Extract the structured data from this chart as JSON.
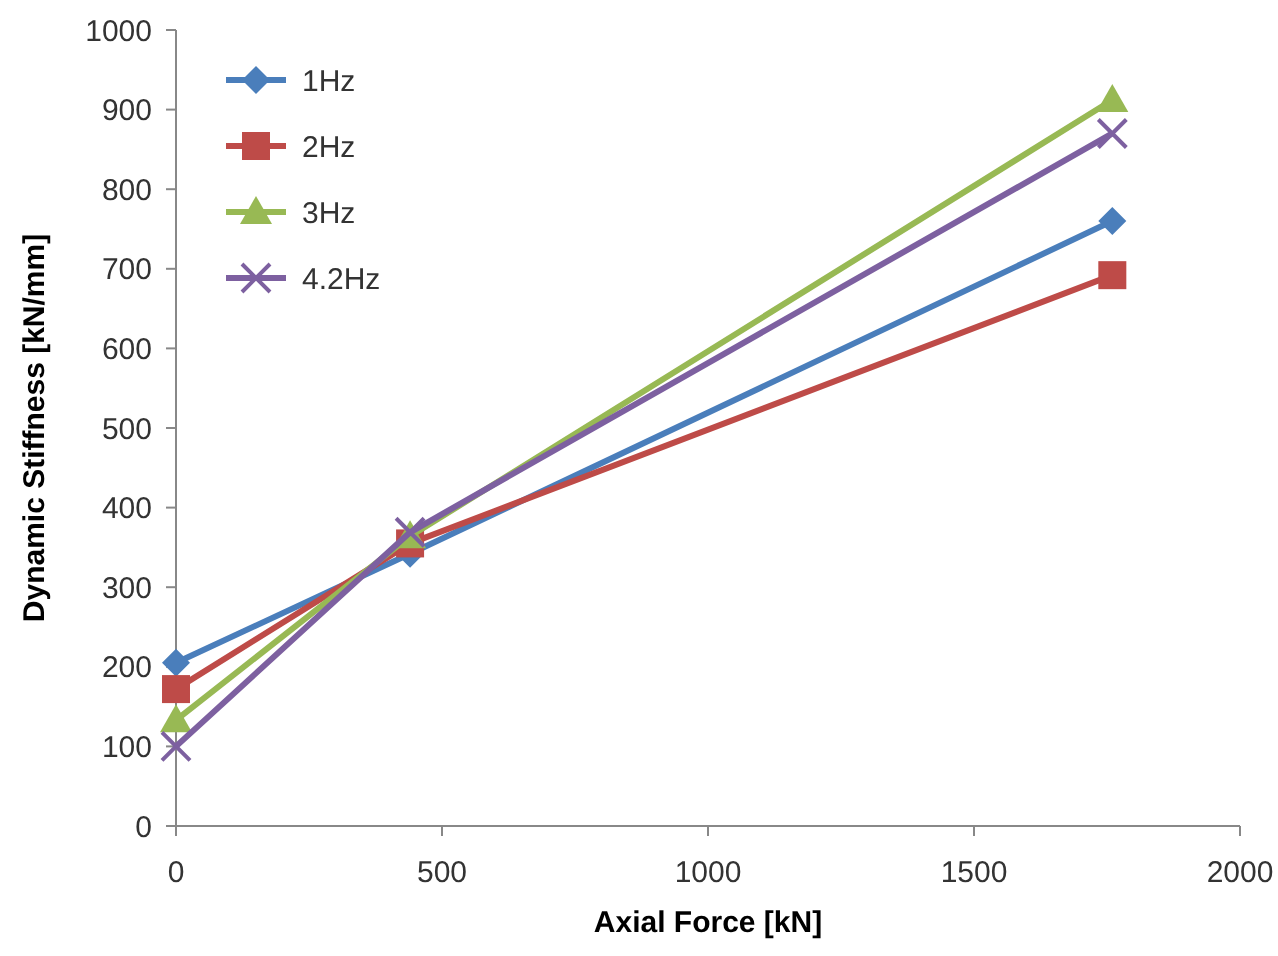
{
  "chart_data": {
    "type": "line",
    "xlabel": "Axial Force [kN]",
    "ylabel": "Dynamic Stiffness [kN/mm]",
    "x": [
      0,
      440,
      1760
    ],
    "xlim": [
      0,
      2000
    ],
    "xticks": [
      0,
      500,
      1000,
      1500,
      2000
    ],
    "ylim": [
      0,
      1000
    ],
    "yticks": [
      0,
      100,
      200,
      300,
      400,
      500,
      600,
      700,
      800,
      900,
      1000
    ],
    "legend": "top left",
    "grid": false,
    "line_style": "solid",
    "series": [
      {
        "name": "1Hz",
        "color": "#4a7ebb",
        "marker": "diamond",
        "values": [
          205,
          342,
          760
        ]
      },
      {
        "name": "2Hz",
        "color": "#be4b48",
        "marker": "square",
        "values": [
          172,
          355,
          692
        ]
      },
      {
        "name": "3Hz",
        "color": "#98b954",
        "marker": "triangle",
        "values": [
          133,
          364,
          912
        ]
      },
      {
        "name": "4.2Hz",
        "color": "#7d60a0",
        "marker": "cross",
        "values": [
          100,
          369,
          870
        ]
      }
    ]
  }
}
